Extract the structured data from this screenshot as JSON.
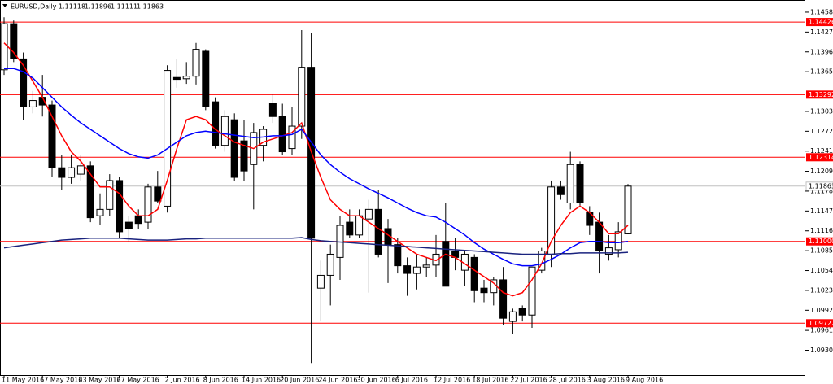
{
  "chart_data": {
    "type": "candlestick",
    "header": {
      "symbol": "EURUSD,Daily",
      "ohlc": [
        1.11118,
        1.11896,
        1.11111,
        1.11863
      ]
    },
    "ylim": [
      1.089,
      1.1477
    ],
    "yticks": [
      {
        "value": 1.1458,
        "label": "1.14580"
      },
      {
        "value": 1.1427,
        "label": "1.14270"
      },
      {
        "value": 1.1396,
        "label": "1.13960"
      },
      {
        "value": 1.1365,
        "label": "1.13650"
      },
      {
        "value": 1.1303,
        "label": "1.13030"
      },
      {
        "value": 1.1272,
        "label": "1.12720"
      },
      {
        "value": 1.1241,
        "label": "1.12410"
      },
      1.12095,
      1.11785,
      1.11475,
      1.11165,
      1.10855,
      1.10545,
      1.10235,
      1.09925,
      {
        "value": 1.0961,
        "label": "1.09610"
      },
      {
        "value": 1.093,
        "label": "1.09300"
      }
    ],
    "xticks": [
      {
        "value": 0,
        "label": "11 May 2016"
      },
      {
        "value": 4,
        "label": "17 May 2016"
      },
      {
        "value": 8,
        "label": "23 May 2016"
      },
      {
        "value": 12,
        "label": "27 May 2016"
      },
      {
        "value": 17,
        "label": "2 Jun 2016"
      },
      {
        "value": 21,
        "label": "8 Jun 2016"
      },
      {
        "value": 25,
        "label": "14 Jun 2016"
      },
      {
        "value": 29,
        "label": "20 Jun 2016"
      },
      {
        "value": 33,
        "label": "24 Jun 2016"
      },
      {
        "value": 37,
        "label": "30 Jun 2016"
      },
      {
        "value": 41,
        "label": "6 Jul 2016"
      },
      {
        "value": 45,
        "label": "12 Jul 2016"
      },
      {
        "value": 49,
        "label": "18 Jul 2016"
      },
      {
        "value": 53,
        "label": "22 Jul 2016"
      },
      {
        "value": 57,
        "label": "28 Jul 2016"
      },
      {
        "value": 61,
        "label": "3 Aug 2016"
      },
      {
        "value": 65,
        "label": "9 Aug 2016"
      }
    ],
    "levels": [
      1.14426,
      1.13292,
      1.12314,
      {
        "value": 1.11,
        "label": "1.11000"
      },
      1.09722
    ],
    "level_color": "#ff0000",
    "current_price": 1.11863,
    "open": [
      1.1368,
      1.144,
      1.1385,
      1.131,
      1.1325,
      1.1313,
      1.1215,
      1.12,
      1.1205,
      1.1218,
      1.114,
      1.115,
      1.1195,
      1.113,
      1.114,
      1.113,
      1.1185,
      1.1155,
      1.1356,
      1.1354,
      1.1358,
      1.1397,
      1.1318,
      1.125,
      1.129,
      1.1257,
      1.122,
      1.125,
      1.1315,
      1.1295,
      1.1245,
      1.128,
      1.1372,
      1.1027,
      1.1047,
      1.1075,
      1.113,
      1.111,
      1.1135,
      1.115,
      1.112,
      1.1095,
      1.1062,
      1.105,
      1.106,
      1.1063,
      1.11,
      1.1085,
      1.1055,
      1.1075,
      1.1027,
      1.102,
      1.104,
      1.0975,
      1.0995,
      1.0985,
      1.1055,
      1.108,
      1.1185,
      1.116,
      1.122,
      1.1145,
      1.113,
      1.108,
      1.1087,
      1.11118
    ],
    "high": [
      1.145,
      1.1445,
      1.1395,
      1.1335,
      1.136,
      1.132,
      1.1235,
      1.1235,
      1.1235,
      1.1225,
      1.1175,
      1.1205,
      1.12,
      1.114,
      1.115,
      1.119,
      1.121,
      1.1375,
      1.1385,
      1.138,
      1.141,
      1.14,
      1.1325,
      1.1305,
      1.13,
      1.129,
      1.1285,
      1.128,
      1.133,
      1.1315,
      1.131,
      1.143,
      1.1425,
      1.107,
      1.1095,
      1.114,
      1.115,
      1.115,
      1.1165,
      1.118,
      1.1135,
      1.1105,
      1.1075,
      1.108,
      1.1075,
      1.111,
      1.116,
      1.1105,
      1.1085,
      1.108,
      1.104,
      1.1045,
      1.106,
      1.0995,
      1.1,
      1.106,
      1.109,
      1.1195,
      1.1195,
      1.124,
      1.1225,
      1.1155,
      1.1145,
      1.111,
      1.113,
      1.11896
    ],
    "low": [
      1.136,
      1.138,
      1.129,
      1.13,
      1.1295,
      1.12,
      1.118,
      1.119,
      1.1195,
      1.113,
      1.1125,
      1.114,
      1.1105,
      1.11,
      1.112,
      1.112,
      1.116,
      1.1145,
      1.134,
      1.1346,
      1.1345,
      1.1305,
      1.1245,
      1.124,
      1.1195,
      1.1195,
      1.115,
      1.1225,
      1.1285,
      1.1235,
      1.1235,
      1.126,
      1.091,
      1.0975,
      1.1,
      1.104,
      1.1105,
      1.1105,
      1.102,
      1.1075,
      1.1035,
      1.105,
      1.1015,
      1.1025,
      1.1045,
      1.1045,
      1.103,
      1.1055,
      1.103,
      1.1005,
      1.1005,
      1.1,
      1.097,
      1.0955,
      1.0975,
      1.0965,
      1.105,
      1.106,
      1.1165,
      1.115,
      1.1155,
      1.111,
      1.105,
      1.107,
      1.1075,
      1.11111
    ],
    "close": [
      1.144,
      1.1385,
      1.131,
      1.132,
      1.1313,
      1.1215,
      1.12,
      1.1215,
      1.1218,
      1.1137,
      1.115,
      1.1195,
      1.1115,
      1.112,
      1.1128,
      1.1185,
      1.1163,
      1.1367,
      1.1353,
      1.1358,
      1.14,
      1.131,
      1.125,
      1.1295,
      1.12,
      1.121,
      1.127,
      1.1275,
      1.1295,
      1.124,
      1.128,
      1.1372,
      1.1105,
      1.1047,
      1.108,
      1.1125,
      1.111,
      1.114,
      1.115,
      1.108,
      1.1095,
      1.1062,
      1.105,
      1.106,
      1.1063,
      1.108,
      1.103,
      1.1075,
      1.108,
      1.1023,
      1.102,
      1.104,
      1.098,
      1.099,
      1.0985,
      1.106,
      1.1085,
      1.1185,
      1.1173,
      1.122,
      1.116,
      1.1125,
      1.1085,
      1.109,
      1.1115,
      1.11863
    ],
    "moving_averages": [
      {
        "color": "#ff0000",
        "values": [
          1.141,
          1.1395,
          1.1375,
          1.135,
          1.1325,
          1.1295,
          1.1265,
          1.124,
          1.1225,
          1.1205,
          1.1185,
          1.1185,
          1.1175,
          1.1155,
          1.114,
          1.114,
          1.115,
          1.1195,
          1.1245,
          1.129,
          1.1295,
          1.129,
          1.1275,
          1.1265,
          1.1255,
          1.125,
          1.1245,
          1.1255,
          1.126,
          1.1265,
          1.127,
          1.1285,
          1.124,
          1.12,
          1.1165,
          1.115,
          1.114,
          1.114,
          1.113,
          1.112,
          1.111,
          1.11,
          1.109,
          1.108,
          1.1075,
          1.107,
          1.108,
          1.1075,
          1.1065,
          1.1055,
          1.1045,
          1.1035,
          1.102,
          1.1015,
          1.102,
          1.104,
          1.1065,
          1.11,
          1.1125,
          1.1145,
          1.1155,
          1.1145,
          1.113,
          1.1112,
          1.1112,
          1.1125
        ]
      },
      {
        "color": "#0000ff",
        "values": [
          1.137,
          1.137,
          1.1365,
          1.1355,
          1.134,
          1.1325,
          1.131,
          1.1297,
          1.1285,
          1.1275,
          1.1265,
          1.1255,
          1.1245,
          1.1237,
          1.1232,
          1.123,
          1.1235,
          1.1245,
          1.1255,
          1.1265,
          1.127,
          1.1272,
          1.127,
          1.1268,
          1.1266,
          1.1264,
          1.1262,
          1.1263,
          1.1265,
          1.1265,
          1.1267,
          1.1275,
          1.1255,
          1.1235,
          1.122,
          1.1208,
          1.1198,
          1.119,
          1.1182,
          1.1175,
          1.1168,
          1.116,
          1.1152,
          1.1145,
          1.114,
          1.1138,
          1.113,
          1.112,
          1.111,
          1.1098,
          1.1088,
          1.108,
          1.1072,
          1.1065,
          1.1062,
          1.1062,
          1.1065,
          1.1072,
          1.108,
          1.109,
          1.1098,
          1.11,
          1.11,
          1.1098,
          1.1098,
          1.11
        ]
      },
      {
        "color": "#1a237e",
        "values": [
          1.109,
          1.1092,
          1.1094,
          1.1096,
          1.1098,
          1.11,
          1.1102,
          1.1103,
          1.1104,
          1.1105,
          1.1105,
          1.1105,
          1.1105,
          1.1104,
          1.1103,
          1.1102,
          1.1102,
          1.1102,
          1.1103,
          1.1104,
          1.1104,
          1.1105,
          1.1105,
          1.1105,
          1.1105,
          1.1105,
          1.1105,
          1.1105,
          1.1105,
          1.1105,
          1.1105,
          1.1106,
          1.1103,
          1.1101,
          1.11,
          1.1099,
          1.1098,
          1.1097,
          1.1096,
          1.1095,
          1.1094,
          1.1093,
          1.1092,
          1.1091,
          1.109,
          1.1089,
          1.1088,
          1.1087,
          1.1086,
          1.1085,
          1.1084,
          1.1083,
          1.1082,
          1.1081,
          1.108,
          1.108,
          1.108,
          1.108,
          1.1081,
          1.1081,
          1.1082,
          1.1082,
          1.1082,
          1.1082,
          1.1082,
          1.1083
        ]
      }
    ]
  }
}
